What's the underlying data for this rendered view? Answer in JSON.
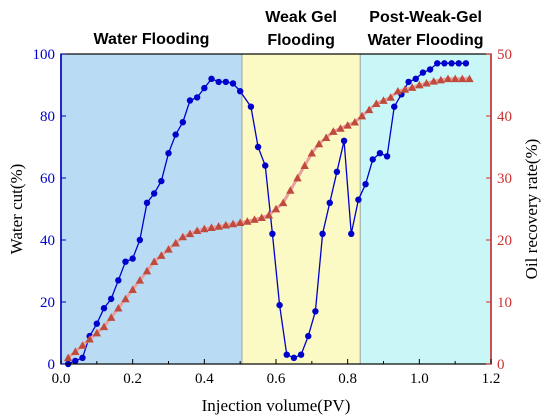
{
  "chart_data": {
    "type": "line",
    "xlabel": "Injection volume(PV)",
    "xlim": [
      0.0,
      1.2
    ],
    "xticks": [
      "0.0",
      "0.2",
      "0.4",
      "0.6",
      "0.8",
      "1.0",
      "1.2"
    ],
    "y_left": {
      "label": "Water cut(%)",
      "lim": [
        0,
        100
      ],
      "ticks": [
        "0",
        "20",
        "40",
        "60",
        "80",
        "100"
      ],
      "color": "#0000cc"
    },
    "y_right": {
      "label": "Oil recovery rate(%)",
      "lim": [
        0,
        50
      ],
      "ticks": [
        "0",
        "10",
        "20",
        "30",
        "40",
        "50"
      ],
      "color": "#cc3333"
    },
    "stages": [
      {
        "lines": [
          "Water Flooding"
        ],
        "x_start": 0.0,
        "x_end": 0.505,
        "color": "#b9dcf4"
      },
      {
        "lines": [
          "Weak Gel",
          "Flooding"
        ],
        "x_start": 0.505,
        "x_end": 0.835,
        "color": "#fbf9c4"
      },
      {
        "lines": [
          "Post-Weak-Gel",
          "Water Flooding"
        ],
        "x_start": 0.835,
        "x_end": 1.2,
        "color": "#c9f7f7"
      }
    ],
    "series": [
      {
        "axis": "left",
        "color": "#0000cc",
        "marker": "circle",
        "x": [
          0.02,
          0.04,
          0.06,
          0.08,
          0.1,
          0.12,
          0.14,
          0.16,
          0.18,
          0.2,
          0.22,
          0.24,
          0.26,
          0.28,
          0.3,
          0.32,
          0.34,
          0.36,
          0.38,
          0.4,
          0.42,
          0.44,
          0.46,
          0.48,
          0.5,
          0.53,
          0.55,
          0.57,
          0.59,
          0.61,
          0.63,
          0.65,
          0.67,
          0.69,
          0.71,
          0.73,
          0.75,
          0.77,
          0.79,
          0.81,
          0.83,
          0.85,
          0.87,
          0.89,
          0.91,
          0.93,
          0.95,
          0.97,
          0.99,
          1.01,
          1.03,
          1.05,
          1.07,
          1.09,
          1.11,
          1.13
        ],
        "y": [
          0,
          1,
          2,
          9,
          13,
          18,
          21,
          27,
          33,
          34,
          40,
          52,
          55,
          59,
          68,
          74,
          78,
          85,
          86,
          89,
          92,
          91,
          91,
          90.5,
          88,
          83,
          70,
          64,
          42,
          19,
          3,
          2,
          3,
          9,
          17,
          42,
          52,
          62,
          72,
          42,
          53,
          58,
          66,
          68,
          67,
          83,
          87,
          91,
          92,
          94,
          95,
          97,
          97,
          97,
          97,
          97
        ]
      },
      {
        "axis": "right",
        "color": "#c04a3c",
        "marker": "triangle",
        "x": [
          0.02,
          0.04,
          0.06,
          0.08,
          0.1,
          0.12,
          0.14,
          0.16,
          0.18,
          0.2,
          0.22,
          0.24,
          0.26,
          0.28,
          0.3,
          0.32,
          0.34,
          0.36,
          0.38,
          0.4,
          0.42,
          0.44,
          0.46,
          0.48,
          0.5,
          0.52,
          0.54,
          0.56,
          0.58,
          0.6,
          0.62,
          0.64,
          0.66,
          0.68,
          0.7,
          0.72,
          0.74,
          0.76,
          0.78,
          0.8,
          0.82,
          0.84,
          0.86,
          0.88,
          0.9,
          0.92,
          0.94,
          0.96,
          0.98,
          1.0,
          1.02,
          1.04,
          1.06,
          1.08,
          1.1,
          1.12,
          1.14
        ],
        "y": [
          1,
          2,
          3,
          4,
          5,
          6,
          7.5,
          9,
          10.5,
          12,
          13.5,
          15,
          16.5,
          17.5,
          18.5,
          19.5,
          20.5,
          21,
          21.5,
          21.8,
          22,
          22.2,
          22.4,
          22.6,
          22.8,
          23,
          23.3,
          23.6,
          24,
          25,
          26,
          28,
          30,
          32,
          34,
          35.5,
          36.5,
          37.5,
          38,
          38.5,
          39,
          40,
          41,
          42,
          42.5,
          43,
          44,
          44.3,
          44.6,
          45,
          45.3,
          45.6,
          45.8,
          46,
          46,
          46,
          46
        ]
      }
    ]
  }
}
